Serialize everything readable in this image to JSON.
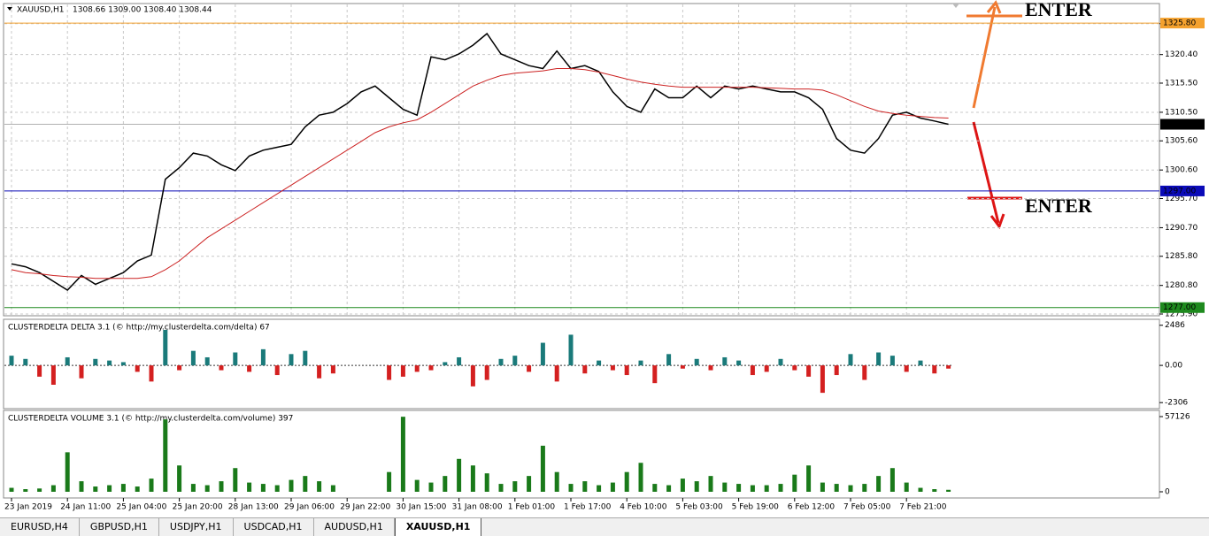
{
  "window": {
    "symbol": "XAUUSD,H1",
    "quote": "1308.66 1309.00 1308.40 1308.44"
  },
  "annotations": [
    {
      "text": "ENTER",
      "color": "#f07a30"
    },
    {
      "text": "ENTER",
      "color": "#dd1515"
    }
  ],
  "tabs": [
    "EURUSD,H4",
    "GBPUSD,H1",
    "USDJPY,H1",
    "USDCAD,H1",
    "AUDUSD,H1",
    "XAUUSD,H1"
  ],
  "active_tab": 5,
  "chart_data": [
    {
      "type": "line",
      "grid": true,
      "categories": [
        "23 Jan 2019",
        null,
        null,
        null,
        "24 Jan 11:00",
        null,
        null,
        null,
        "25 Jan 04:00",
        null,
        null,
        null,
        "25 Jan 20:00",
        null,
        null,
        null,
        "28 Jan 13:00",
        null,
        null,
        null,
        "29 Jan 06:00",
        null,
        null,
        null,
        "29 Jan 22:00",
        null,
        null,
        null,
        "30 Jan 15:00",
        null,
        null,
        null,
        "31 Jan 08:00",
        null,
        null,
        null,
        "1 Feb 01:00",
        null,
        null,
        null,
        "1 Feb 17:00",
        null,
        null,
        null,
        "4 Feb 10:00",
        null,
        null,
        null,
        "5 Feb 03:00",
        null,
        null,
        null,
        "5 Feb 19:00",
        null,
        null,
        null,
        "6 Feb 12:00",
        null,
        null,
        null,
        "7 Feb 05:00",
        null,
        null,
        null,
        "7 Feb 21:00",
        null,
        null,
        null
      ],
      "series": [
        {
          "color": "#000000",
          "values": [
            1284.5,
            1284,
            1283,
            1281.5,
            1280,
            1282.5,
            1281,
            1282,
            1283,
            1285,
            1286,
            1299,
            1301,
            1303.5,
            1303,
            1301.5,
            1300.5,
            1303,
            1304,
            1304.5,
            1305,
            1308,
            1310,
            1310.5,
            1312,
            1314,
            1315,
            1313,
            1311,
            1310,
            1320,
            1319.5,
            1320.5,
            1322,
            1324,
            1320.5,
            1319.5,
            1318.5,
            1318,
            1321,
            1318,
            1318.5,
            1317.5,
            1314,
            1311.5,
            1310.5,
            1314.5,
            1313,
            1313,
            1315,
            1313,
            1315,
            1314.5,
            1315,
            1314.5,
            1314,
            1314,
            1313,
            1311,
            1306,
            1304,
            1303.5,
            1306,
            1310,
            1310.5,
            1309.5,
            1309,
            1308.44
          ]
        },
        {
          "color": "#cc2222",
          "values": [
            1283.5,
            1283,
            1282.8,
            1282.5,
            1282.3,
            1282.2,
            1282,
            1282,
            1282,
            1282,
            1282.3,
            1283.5,
            1285,
            1287,
            1289,
            1290.5,
            1292,
            1293.5,
            1295,
            1296.5,
            1298,
            1299.5,
            1301,
            1302.5,
            1304,
            1305.5,
            1307,
            1308,
            1308.7,
            1309.2,
            1310.5,
            1312,
            1313.5,
            1315,
            1316,
            1316.8,
            1317.2,
            1317.4,
            1317.6,
            1318,
            1318,
            1317.8,
            1317.4,
            1316.8,
            1316.2,
            1315.7,
            1315.3,
            1315,
            1314.8,
            1314.8,
            1314.8,
            1314.8,
            1314.8,
            1314.8,
            1314.7,
            1314.6,
            1314.5,
            1314.5,
            1314.3,
            1313.5,
            1312.5,
            1311.5,
            1310.7,
            1310.3,
            1310,
            1309.8,
            1309.6,
            1309.5
          ]
        }
      ],
      "ylim": [
        1275.9,
        1329.0
      ],
      "yticks": [
        {
          "value": 1325.7,
          "label": "1325.70"
        },
        {
          "value": 1320.4,
          "label": "1320.40"
        },
        {
          "value": 1315.5,
          "label": "1315.50"
        },
        {
          "value": 1310.5,
          "label": "1310.50"
        },
        {
          "value": 1305.6,
          "label": "1305.60"
        },
        {
          "value": 1300.6,
          "label": "1300.60"
        },
        {
          "value": 1295.7,
          "label": "1295.70"
        },
        {
          "value": 1290.7,
          "label": "1290.70"
        },
        {
          "value": 1285.8,
          "label": "1285.80"
        },
        {
          "value": 1280.8,
          "label": "1280.80"
        },
        {
          "value": 1275.9,
          "label": "1275.90"
        }
      ],
      "levels": [
        {
          "value": 1325.8,
          "label": "1325.80",
          "color": "#f4a12e"
        },
        {
          "value": 1297,
          "label": "1297.00",
          "color": "#0a0ab8"
        },
        {
          "value": 1277,
          "label": "1277.00",
          "color": "#1e8a1e"
        },
        {
          "value": 1308.44,
          "label": "1308.44",
          "color": "#000000"
        }
      ]
    },
    {
      "type": "bar",
      "title": "CLUSTERDELTA DELTA 3.1 (© http://my.clusterdelta.com/delta) 67",
      "colors": {
        "positive": "#1a7a7a",
        "negative": "#d42020"
      },
      "values": [
        600,
        400,
        -700,
        -1200,
        500,
        -800,
        400,
        300,
        200,
        -400,
        -1000,
        2200,
        -300,
        900,
        500,
        -300,
        800,
        -400,
        1000,
        -600,
        700,
        900,
        -800,
        -500,
        null,
        null,
        null,
        -900,
        -700,
        -400,
        -300,
        200,
        500,
        -1300,
        -900,
        400,
        600,
        -400,
        1400,
        -1000,
        1900,
        -500,
        300,
        -300,
        -600,
        300,
        -1100,
        700,
        -200,
        400,
        -300,
        500,
        300,
        -600,
        -400,
        400,
        -300,
        -700,
        -1700,
        -600,
        700,
        -900,
        800,
        600,
        -400,
        300,
        -500,
        -200
      ],
      "ylim": [
        -2570,
        2800
      ],
      "yticks": [
        2486,
        {
          "value": 0,
          "label": "0.00"
        },
        -2306
      ]
    },
    {
      "type": "bar",
      "title": "CLUSTERDELTA VOLUME 3.1 (© http://my.clusterdelta.com/volume) 397",
      "color": "#1a7a1a",
      "values": [
        3000,
        2000,
        2500,
        5000,
        30000,
        8000,
        4000,
        5000,
        6000,
        4000,
        10000,
        55000,
        20000,
        6000,
        5000,
        8000,
        18000,
        7000,
        6000,
        5000,
        9000,
        12000,
        8000,
        5000,
        null,
        null,
        null,
        15000,
        57000,
        9000,
        7000,
        12000,
        25000,
        20000,
        14000,
        6000,
        8000,
        12000,
        35000,
        15000,
        6000,
        8000,
        5000,
        7000,
        15000,
        22000,
        6000,
        5000,
        10000,
        8000,
        12000,
        7000,
        6000,
        5000,
        5000,
        6000,
        13000,
        20000,
        7000,
        6000,
        5000,
        6000,
        12000,
        18000,
        7000,
        3000,
        2000,
        1500
      ],
      "ylim": [
        -3360,
        60486
      ],
      "yticks": [
        57126,
        0
      ]
    }
  ]
}
